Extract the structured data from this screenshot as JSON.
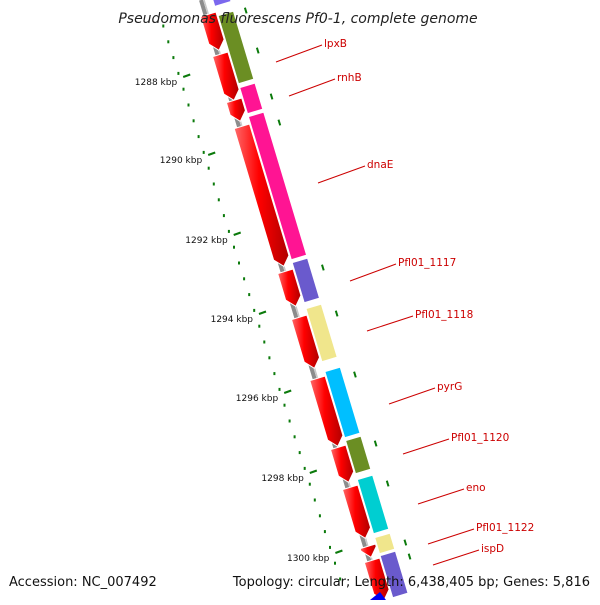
{
  "title": "Pseudomonas fluorescens Pf0-1, complete genome",
  "footer": {
    "accession": "Accession: NC_007492",
    "topology": "Topology: circular; Length: 6,438,405 bp; Genes: 5,816"
  },
  "colors": {
    "backbone": "#8c8c8c",
    "tick": "#0b7a0b",
    "cds": "#ff0000",
    "label": "#cc0000",
    "marker": "#0000ee"
  },
  "scale": {
    "unit": "kbp",
    "labels": [
      "1288 kbp",
      "1290 kbp",
      "1292 kbp",
      "1294 kbp",
      "1296 kbp",
      "1298 kbp",
      "1300 kbp"
    ]
  },
  "genes": [
    {
      "name": "lpxB",
      "color": "#6b8e23"
    },
    {
      "name": "rnhB",
      "color": "#ff1493"
    },
    {
      "name": "dnaE",
      "color": "#ff1493"
    },
    {
      "name": "Pfl01_1117",
      "color": "#6a5acd"
    },
    {
      "name": "Pfl01_1118",
      "color": "#f0e68c"
    },
    {
      "name": "pyrG",
      "color": "#00bfff"
    },
    {
      "name": "Pfl01_1120",
      "color": "#6b8e23"
    },
    {
      "name": "eno",
      "color": "#00ced1"
    },
    {
      "name": "Pfl01_1122",
      "color": "#f0e68c"
    },
    {
      "name": "ispD",
      "color": "#6a5acd"
    }
  ]
}
